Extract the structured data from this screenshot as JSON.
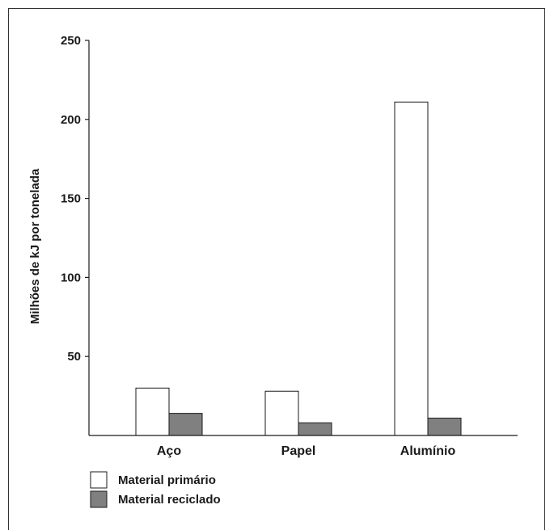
{
  "chart_data": {
    "type": "bar",
    "title": "",
    "xlabel": "",
    "ylabel": "Milhões de kJ por tonelada",
    "ylim": [
      0,
      250
    ],
    "yticks": [
      50,
      100,
      150,
      200,
      250
    ],
    "categories": [
      "Aço",
      "Papel",
      "Alumínio"
    ],
    "series": [
      {
        "name": "Material primário",
        "values": [
          30,
          28,
          211
        ],
        "color": "#ffffff"
      },
      {
        "name": "Material reciclado",
        "values": [
          14,
          8,
          11
        ],
        "color": "#808080"
      }
    ],
    "grid": false,
    "legend_position": "bottom-left"
  }
}
